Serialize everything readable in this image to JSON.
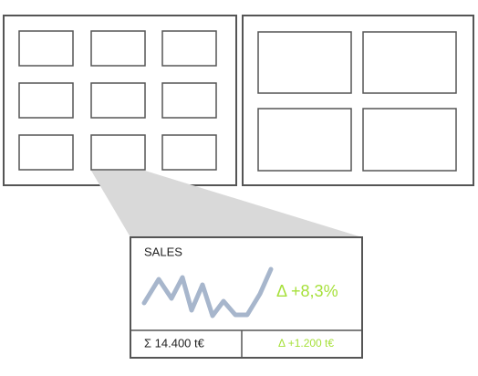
{
  "callout": {
    "title": "SALES",
    "change": "Δ +8,3%",
    "total": "Σ 14.400 t€",
    "change_amount": "Δ +1.200 t€"
  }
}
